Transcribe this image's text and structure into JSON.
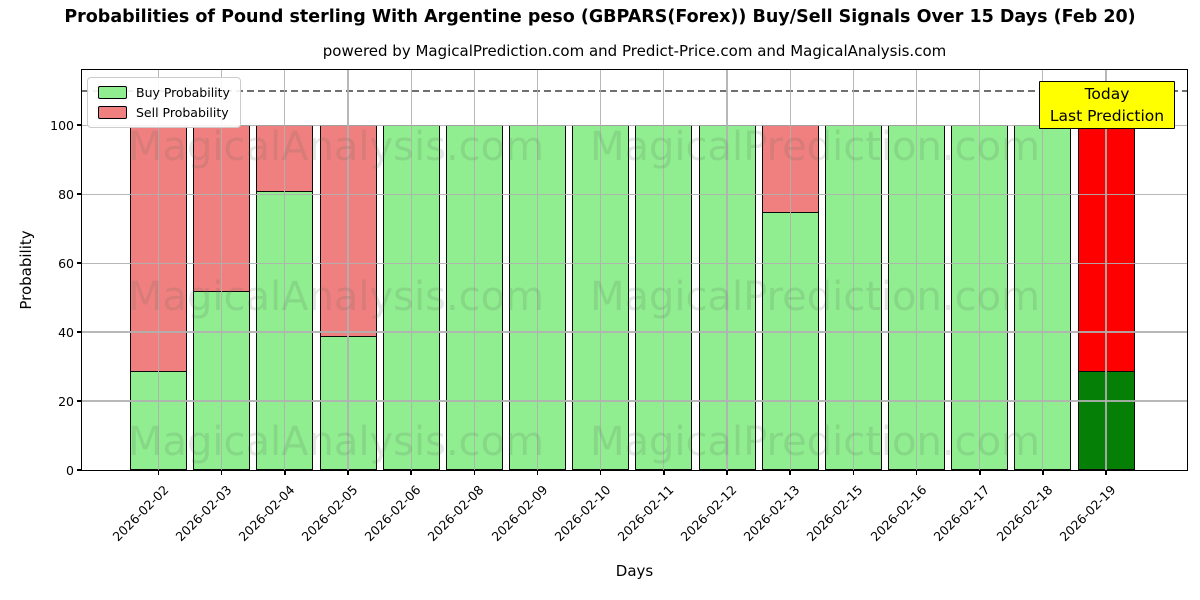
{
  "title": "Probabilities of Pound sterling With Argentine peso (GBPARS(Forex)) Buy/Sell Signals Over 15 Days (Feb 20)",
  "subtitle": "powered by MagicalPrediction.com and Predict-Price.com and MagicalAnalysis.com",
  "legend": [
    {
      "label": "Buy Probability",
      "color": "#90ee90"
    },
    {
      "label": "Sell Probability",
      "color": "#f08080"
    }
  ],
  "annotation": {
    "line1": "Today",
    "line2": "Last Prediction",
    "bg": "#ffff00"
  },
  "watermarks": {
    "left_text": "MagicalAnalysis.com",
    "right_text": "MagicalPrediction.com"
  },
  "colors": {
    "buy": "#90ee90",
    "sell": "#f08080",
    "buy_today": "#067f06",
    "sell_today": "#fe0000",
    "bar_edge": "#0a0a0a",
    "grid": "#b0b0b0",
    "dashed_line": "#707070",
    "annotation_bg": "#ffff00"
  },
  "chart_data": {
    "type": "bar",
    "stacked": true,
    "title": "Probabilities of Pound sterling With Argentine peso (GBPARS(Forex)) Buy/Sell Signals Over 15 Days (Feb 20)",
    "xlabel": "Days",
    "ylabel": "Probability",
    "ylim": [
      0,
      116
    ],
    "yticks": [
      0,
      20,
      40,
      60,
      80,
      100
    ],
    "grid": true,
    "dashed_line_y": 110,
    "legend_position": "upper-left",
    "categories": [
      "2026-02-02",
      "2026-02-03",
      "2026-02-04",
      "2026-02-05",
      "2026-02-06",
      "2026-02-08",
      "2026-02-09",
      "2026-02-10",
      "2026-02-11",
      "2026-02-12",
      "2026-02-13",
      "2026-02-15",
      "2026-02-16",
      "2026-02-17",
      "2026-02-18",
      "2026-02-19"
    ],
    "series": [
      {
        "name": "Buy Probability",
        "values": [
          29,
          52,
          81,
          39,
          100,
          100,
          100,
          100,
          100,
          100,
          75,
          100,
          100,
          100,
          100,
          29
        ]
      },
      {
        "name": "Sell Probability",
        "values": [
          71,
          48,
          19,
          61,
          0,
          0,
          0,
          0,
          0,
          0,
          25,
          0,
          0,
          0,
          0,
          71
        ]
      }
    ],
    "today_index": 15
  }
}
